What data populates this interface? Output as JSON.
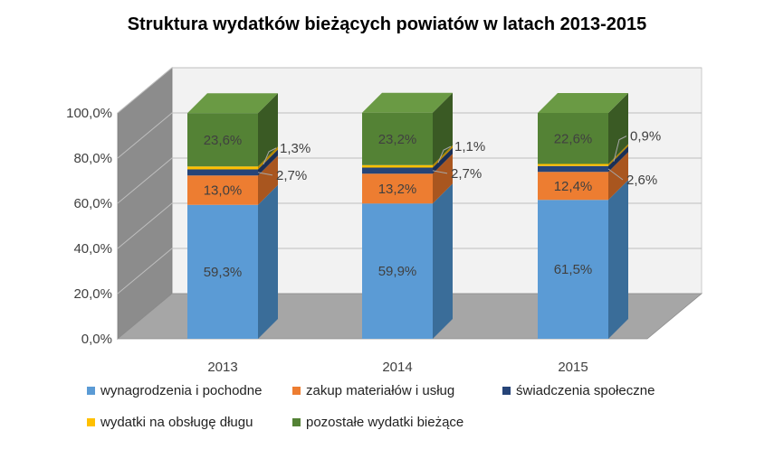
{
  "chart_data": {
    "type": "bar",
    "stacked": true,
    "percent": true,
    "three_d": true,
    "title": "Struktura wydatków bieżących powiatów w latach 2013-2015",
    "categories": [
      "2013",
      "2014",
      "2015"
    ],
    "ylim": [
      0,
      100
    ],
    "yticks": [
      "0,0%",
      "20,0%",
      "40,0%",
      "60,0%",
      "80,0%",
      "100,0%"
    ],
    "grid": true,
    "legend_position": "bottom",
    "series": [
      {
        "name": "wynagrodzenia i pochodne",
        "color": "#5B9BD5",
        "side": "#3A6D99",
        "values": [
          59.3,
          59.9,
          61.5
        ],
        "labels": [
          "59,3%",
          "59,9%",
          "61,5%"
        ]
      },
      {
        "name": "zakup materiałów i usług",
        "color": "#ED7D31",
        "side": "#A9561F",
        "values": [
          13.0,
          13.2,
          12.4
        ],
        "labels": [
          "13,0%",
          "13,2%",
          "12,4%"
        ]
      },
      {
        "name": "świadczenia społeczne",
        "color": "#264478",
        "side": "#1A2F55",
        "values": [
          2.7,
          2.7,
          2.6
        ],
        "labels": [
          "2,7%",
          "2,7%",
          "2,6%"
        ]
      },
      {
        "name": "wydatki na obsługę długu",
        "color": "#FFC000",
        "side": "#B38600",
        "values": [
          1.3,
          1.1,
          0.9
        ],
        "labels": [
          "1,3%",
          "1,1%",
          "0,9%"
        ]
      },
      {
        "name": "pozostałe wydatki bieżące",
        "color": "#548235",
        "side": "#3A5A24",
        "values": [
          23.6,
          23.2,
          22.6
        ],
        "labels": [
          "23,6%",
          "23,2%",
          "22,6%"
        ]
      }
    ]
  }
}
